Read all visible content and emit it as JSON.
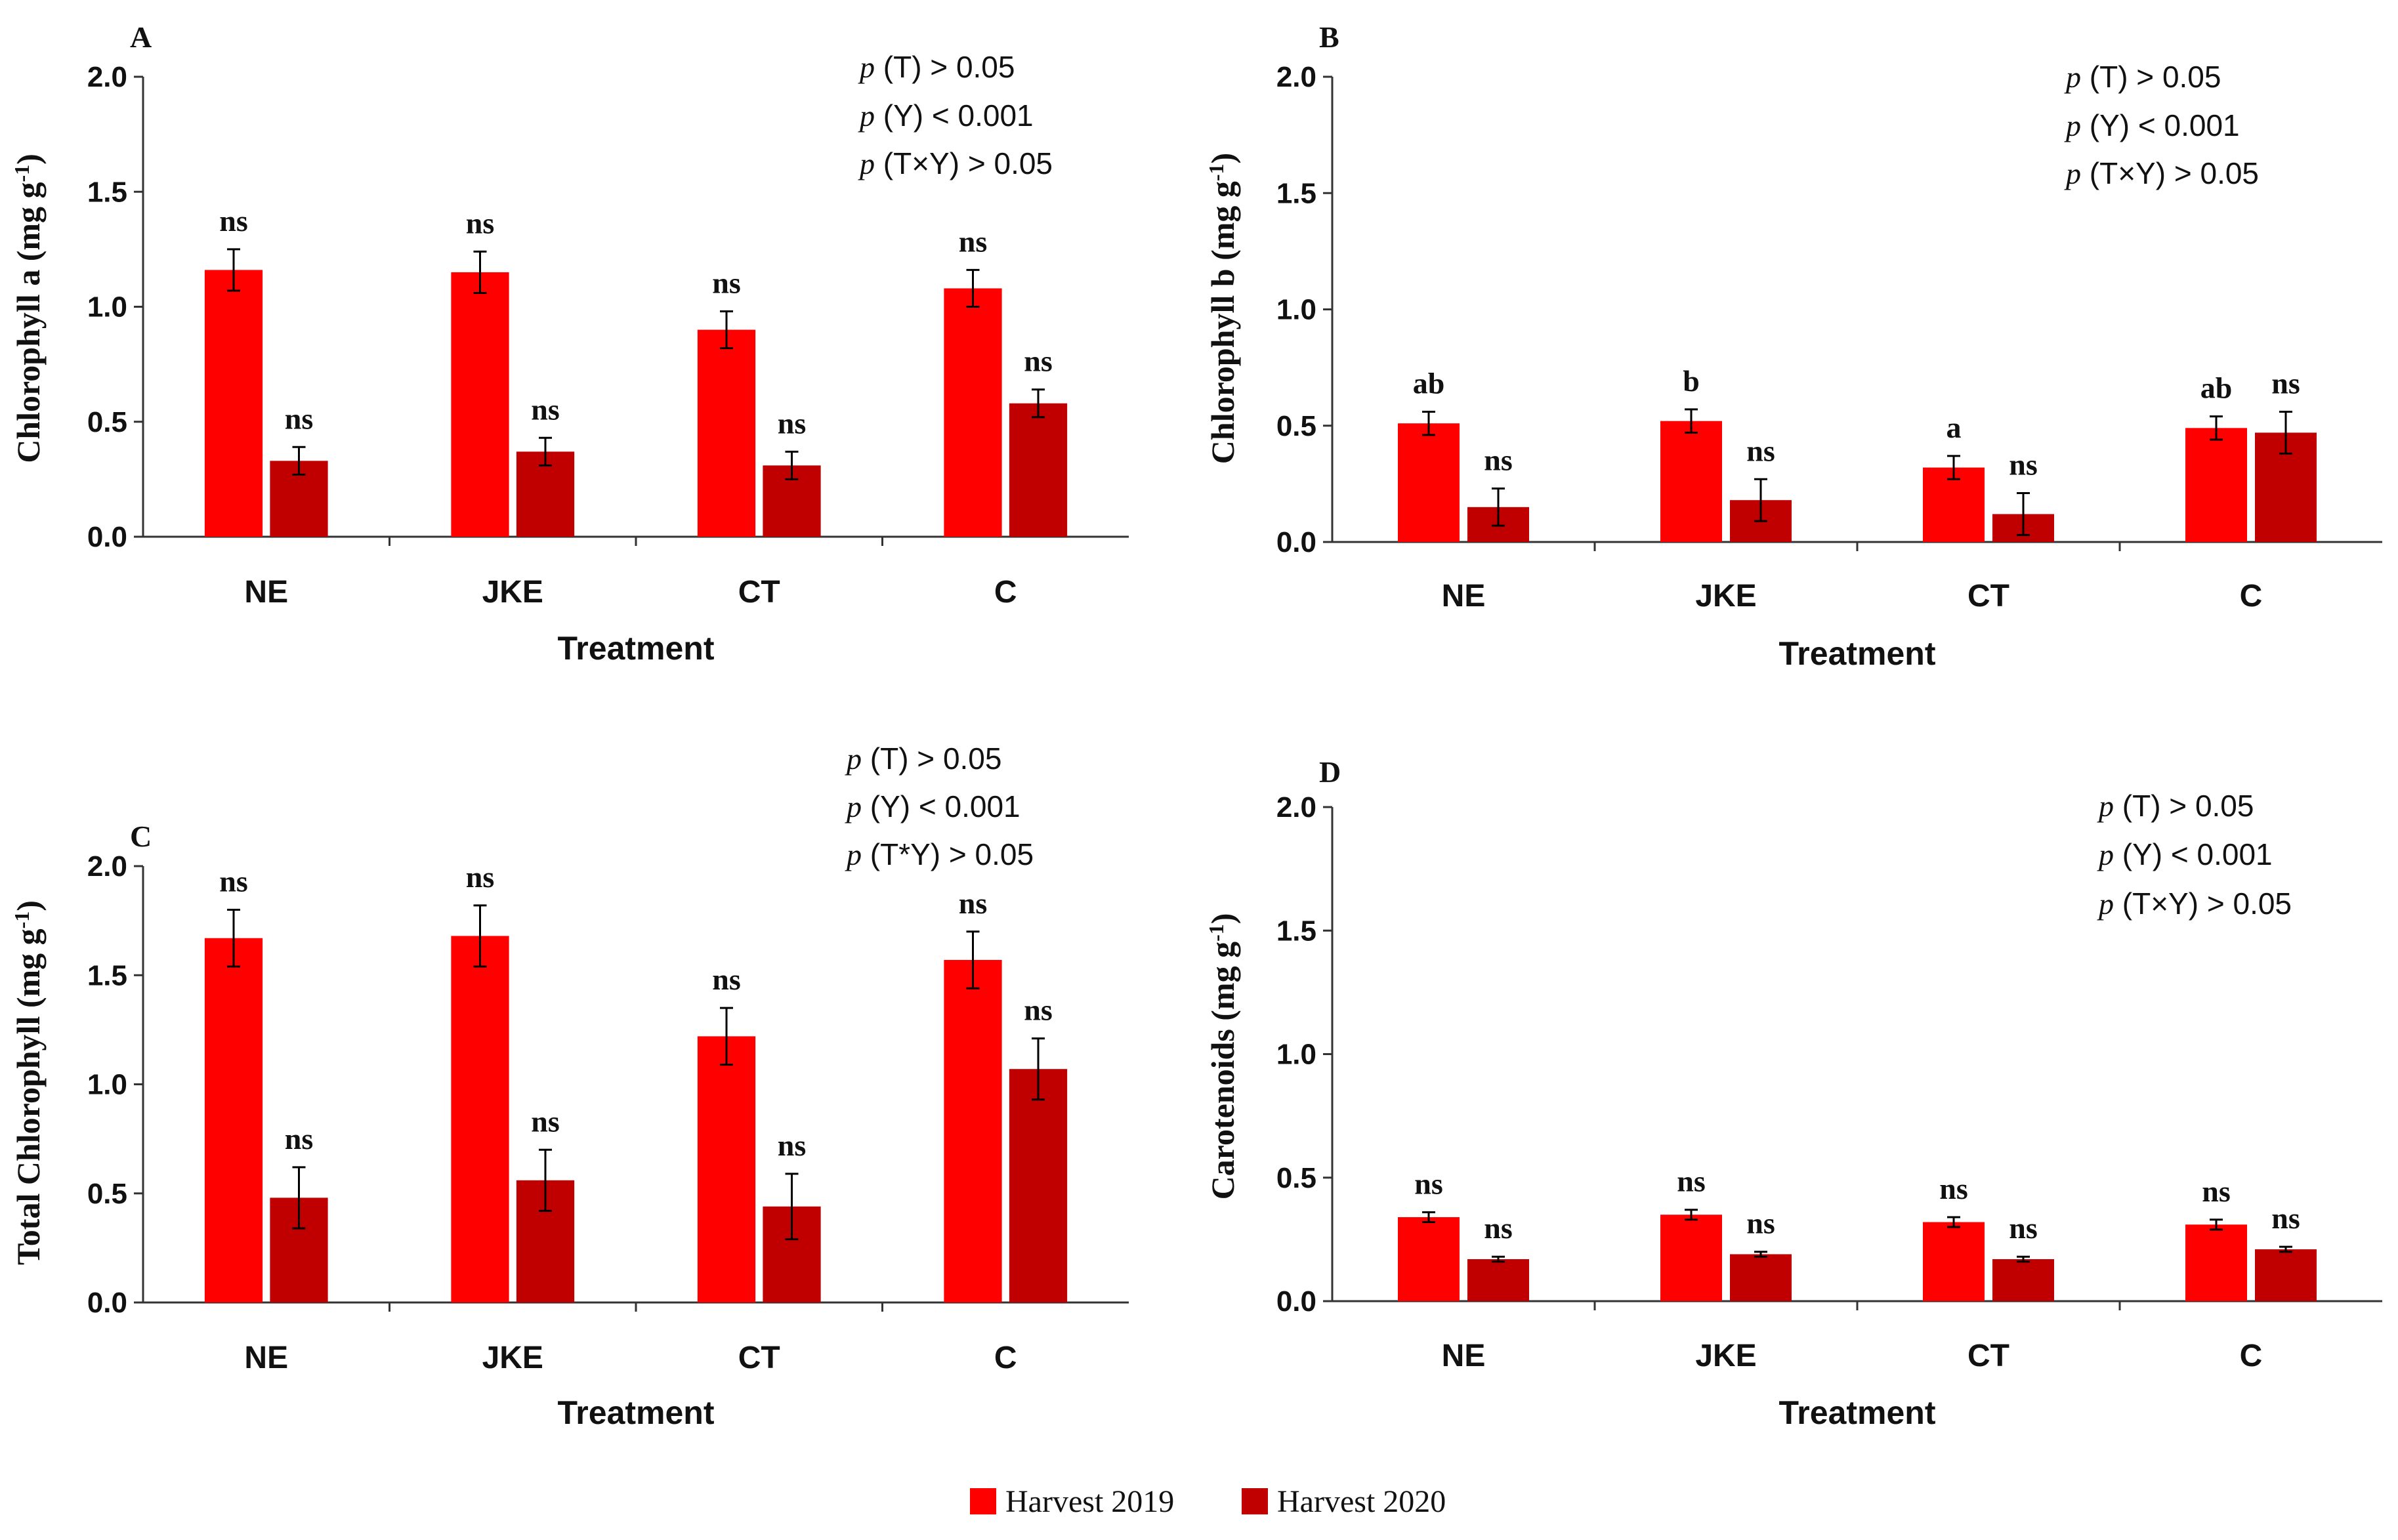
{
  "colors": {
    "harvest_2019": "#ff0000",
    "harvest_2020": "#c00000",
    "axis": "#333333",
    "text": "#111111"
  },
  "legend": [
    {
      "label": "Harvest 2019"
    },
    {
      "label": "Harvest 2020"
    }
  ],
  "chart_data": [
    {
      "type": "bar",
      "panel": "A",
      "xlabel": "Treatment",
      "ylabel": "Chlorophyll a (mg g-1)",
      "ylabel_base": "Chlorophyll a  (mg g",
      "ylabel_sup": "-1",
      "ylabel_close": ")",
      "ylim": [
        0,
        2.0
      ],
      "yticks": [
        0,
        0.5,
        1.0,
        1.5,
        2.0
      ],
      "ytick_labels": [
        "0.0",
        "0.5",
        "1.0",
        "1.5",
        "2.0"
      ],
      "categories": [
        "NE",
        "JKE",
        "CT",
        "C"
      ],
      "series": [
        {
          "name": "Harvest 2019",
          "values": [
            1.16,
            1.15,
            0.9,
            1.08
          ],
          "errors": [
            0.09,
            0.09,
            0.08,
            0.08
          ],
          "labels": [
            "ns",
            "ns",
            "ns",
            "ns"
          ]
        },
        {
          "name": "Harvest 2020",
          "values": [
            0.33,
            0.37,
            0.31,
            0.58
          ],
          "errors": [
            0.06,
            0.06,
            0.06,
            0.06
          ],
          "labels": [
            "ns",
            "ns",
            "ns",
            "ns"
          ]
        }
      ],
      "stats": [
        {
          "p": "p",
          "rest": " (T) > 0.05"
        },
        {
          "p": "p",
          "rest": " (Y) < 0.001"
        },
        {
          "p": "p",
          "rest": " (T×Y) > 0.05"
        }
      ]
    },
    {
      "type": "bar",
      "panel": "B",
      "xlabel": "Treatment",
      "ylabel": "Chlorophyll b (mg g-1)",
      "ylabel_base": "Chlorophyll b  (mg g",
      "ylabel_sup": "-1",
      "ylabel_close": ")",
      "ylim": [
        0,
        2.0
      ],
      "yticks": [
        0,
        0.5,
        1.0,
        1.5,
        2.0
      ],
      "ytick_labels": [
        "0.0",
        "0.5",
        "1.0",
        "1.5",
        "2.0"
      ],
      "categories": [
        "NE",
        "JKE",
        "CT",
        "C"
      ],
      "series": [
        {
          "name": "Harvest 2019",
          "values": [
            0.51,
            0.52,
            0.32,
            0.49
          ],
          "errors": [
            0.05,
            0.05,
            0.05,
            0.05
          ],
          "labels": [
            "ab",
            "b",
            "a",
            "ab"
          ]
        },
        {
          "name": "Harvest 2020",
          "values": [
            0.15,
            0.18,
            0.12,
            0.47
          ],
          "errors": [
            0.08,
            0.09,
            0.09,
            0.09
          ],
          "labels": [
            "ns",
            "ns",
            "ns",
            "ns"
          ]
        }
      ],
      "stats": [
        {
          "p": "p",
          "rest": " (T) > 0.05"
        },
        {
          "p": "p",
          "rest": " (Y) < 0.001"
        },
        {
          "p": "p",
          "rest": " (T×Y) > 0.05"
        }
      ]
    },
    {
      "type": "bar",
      "panel": "C",
      "xlabel": "Treatment",
      "ylabel": "Total Chlorophyll (mg g-1)",
      "ylabel_base": "Total Chlorophyll  (mg g",
      "ylabel_sup": "-1",
      "ylabel_close": ")",
      "ylim": [
        0,
        2.0
      ],
      "yticks": [
        0,
        0.5,
        1.0,
        1.5,
        2.0
      ],
      "ytick_labels": [
        "0.0",
        "0.5",
        "1.0",
        "1.5",
        "2.0"
      ],
      "categories": [
        "NE",
        "JKE",
        "CT",
        "C"
      ],
      "series": [
        {
          "name": "Harvest 2019",
          "values": [
            1.67,
            1.68,
            1.22,
            1.57
          ],
          "errors": [
            0.13,
            0.14,
            0.13,
            0.13
          ],
          "labels": [
            "ns",
            "ns",
            "ns",
            "ns"
          ]
        },
        {
          "name": "Harvest 2020",
          "values": [
            0.48,
            0.56,
            0.44,
            1.07
          ],
          "errors": [
            0.14,
            0.14,
            0.15,
            0.14
          ],
          "labels": [
            "ns",
            "ns",
            "ns",
            "ns"
          ]
        }
      ],
      "stats": [
        {
          "p": "p",
          "rest": " (T) > 0.05"
        },
        {
          "p": "p",
          "rest": " (Y) < 0.001"
        },
        {
          "p": "p",
          "rest": " (T*Y) > 0.05"
        }
      ]
    },
    {
      "type": "bar",
      "panel": "D",
      "xlabel": "Treatment",
      "ylabel": "Carotenoids (mg g-1)",
      "ylabel_base": "Carotenoids  (mg g",
      "ylabel_sup": "-1",
      "ylabel_close": ")",
      "ylim": [
        0,
        2.0
      ],
      "yticks": [
        0,
        0.5,
        1.0,
        1.5,
        2.0
      ],
      "ytick_labels": [
        "0.0",
        "0.5",
        "1.0",
        "1.5",
        "2.0"
      ],
      "categories": [
        "NE",
        "JKE",
        "CT",
        "C"
      ],
      "series": [
        {
          "name": "Harvest 2019",
          "values": [
            0.34,
            0.35,
            0.32,
            0.31
          ],
          "errors": [
            0.02,
            0.02,
            0.02,
            0.02
          ],
          "labels": [
            "ns",
            "ns",
            "ns",
            "ns"
          ]
        },
        {
          "name": "Harvest 2020",
          "values": [
            0.17,
            0.19,
            0.17,
            0.21
          ],
          "errors": [
            0.01,
            0.01,
            0.01,
            0.01
          ],
          "labels": [
            "ns",
            "ns",
            "ns",
            "ns"
          ]
        }
      ],
      "stats": [
        {
          "p": "p",
          "rest": " (T) > 0.05"
        },
        {
          "p": "p",
          "rest": " (Y) < 0.001"
        },
        {
          "p": "p",
          "rest": " (T×Y) > 0.05"
        }
      ]
    }
  ]
}
